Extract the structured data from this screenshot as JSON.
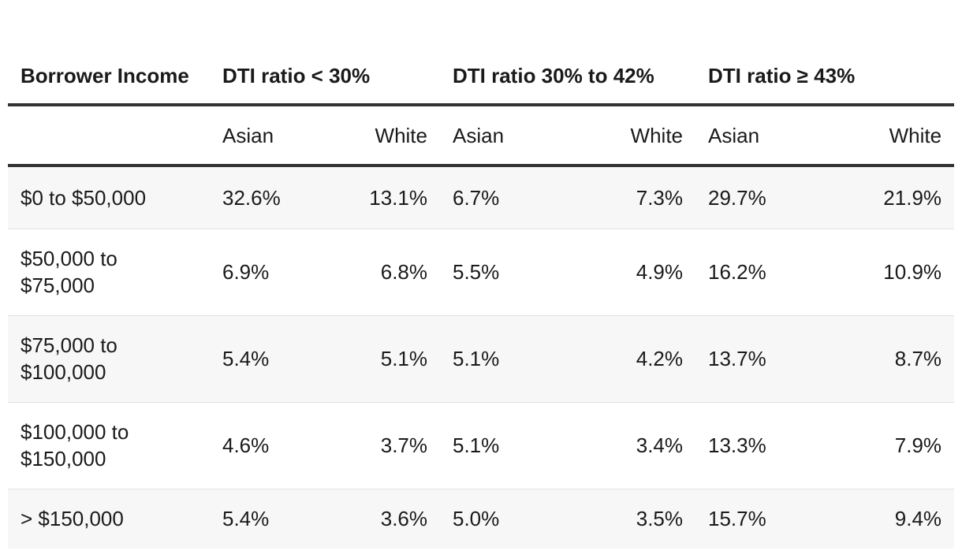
{
  "table": {
    "headers": {
      "row_label": "Borrower Income",
      "groups": [
        "DTI ratio < 30%",
        "DTI ratio 30% to 42%",
        "DTI ratio ≥ 43%"
      ],
      "subgroups": [
        "Asian",
        "White",
        "Asian",
        "White",
        "Asian",
        "White"
      ]
    },
    "rows": [
      {
        "label": "$0 to $50,000",
        "values": [
          "32.6%",
          "13.1%",
          "6.7%",
          "7.3%",
          "29.7%",
          "21.9%"
        ]
      },
      {
        "label": "$50,000 to $75,000",
        "values": [
          "6.9%",
          "6.8%",
          "5.5%",
          "4.9%",
          "16.2%",
          "10.9%"
        ]
      },
      {
        "label": "$75,000 to $100,000",
        "values": [
          "5.4%",
          "5.1%",
          "5.1%",
          "4.2%",
          "13.7%",
          "8.7%"
        ]
      },
      {
        "label": "$100,000 to $150,000",
        "values": [
          "4.6%",
          "3.7%",
          "5.1%",
          "3.4%",
          "13.3%",
          "7.9%"
        ]
      },
      {
        "label": "> $150,000",
        "values": [
          "5.4%",
          "3.6%",
          "5.0%",
          "3.5%",
          "15.7%",
          "9.4%"
        ]
      }
    ]
  },
  "chart_data": {
    "type": "table",
    "columns": [
      "Borrower Income",
      "DTI ratio < 30% Asian",
      "DTI ratio < 30% White",
      "DTI ratio 30% to 42% Asian",
      "DTI ratio 30% to 42% White",
      "DTI ratio ≥ 43% Asian",
      "DTI ratio ≥ 43% White"
    ],
    "rows": [
      [
        "$0 to $50,000",
        32.6,
        13.1,
        6.7,
        7.3,
        29.7,
        21.9
      ],
      [
        "$50,000 to $75,000",
        6.9,
        6.8,
        5.5,
        4.9,
        16.2,
        10.9
      ],
      [
        "$75,000 to $100,000",
        5.4,
        5.1,
        5.1,
        4.2,
        13.7,
        8.7
      ],
      [
        "$100,000 to $150,000",
        4.6,
        3.7,
        5.1,
        3.4,
        13.3,
        7.9
      ],
      [
        "> $150,000",
        5.4,
        3.6,
        5.0,
        3.5,
        15.7,
        9.4
      ]
    ]
  }
}
